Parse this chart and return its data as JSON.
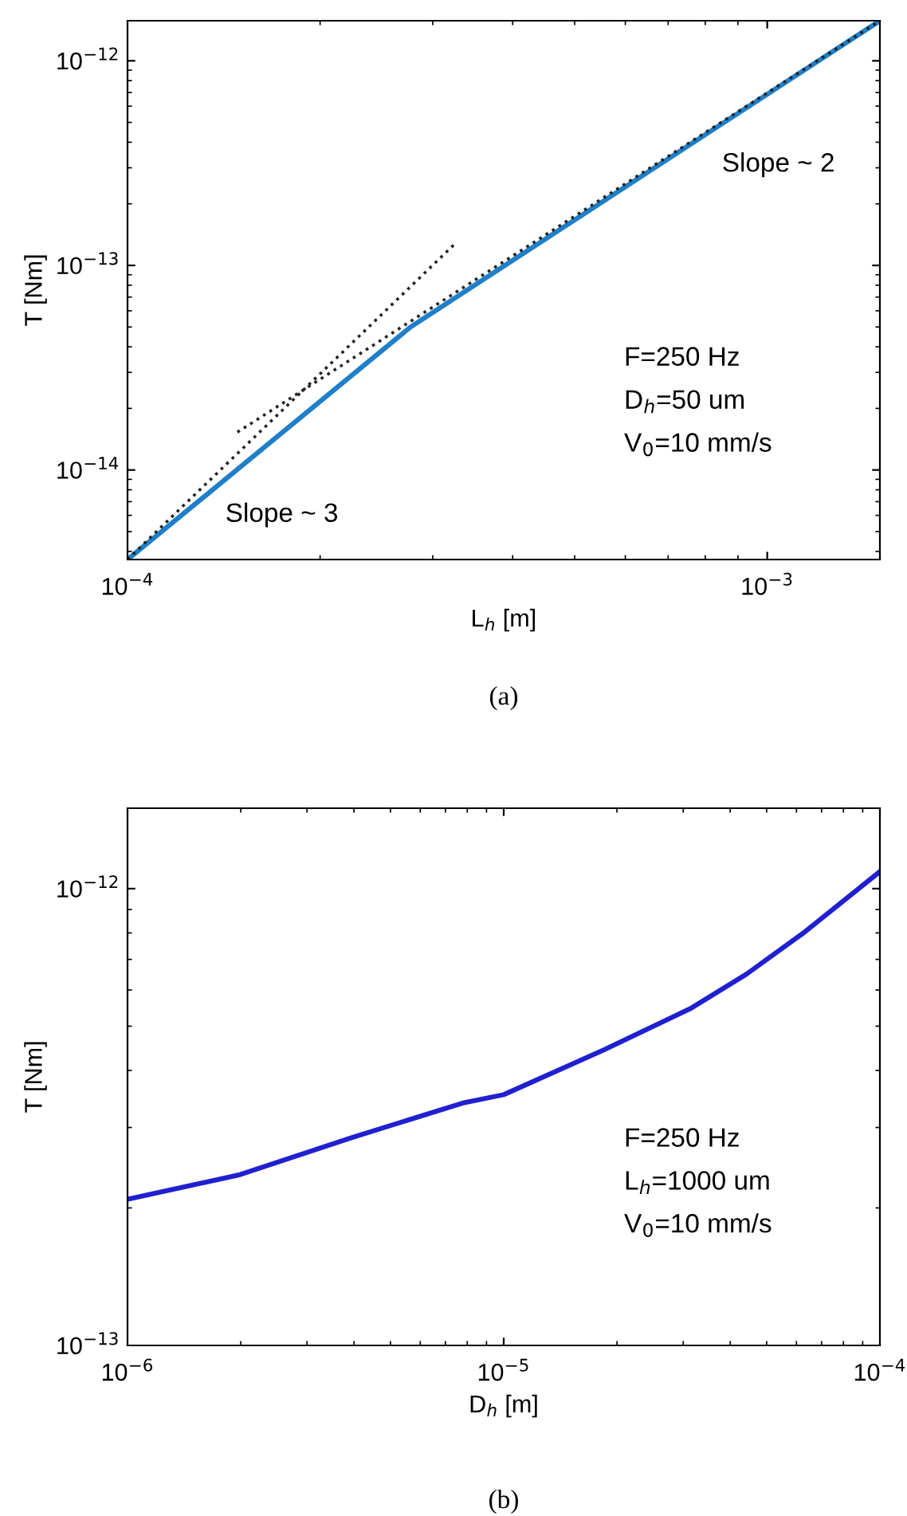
{
  "chart_data": [
    {
      "type": "line",
      "xlabel": "L$_{h}$ [m]",
      "ylabel": "T [Nm]",
      "log": "xy",
      "grid": false,
      "xlim": [
        0.0001,
        0.0015
      ],
      "ylim": [
        3.65e-15,
        1.57e-12
      ],
      "xticks": [
        {
          "value": 0.0001,
          "label": "10$^{−4}$"
        },
        {
          "value": 0.001,
          "label": "10$^{−3}$"
        }
      ],
      "yticks": [
        {
          "value": 1e-14,
          "label": "10$^{−14}$"
        },
        {
          "value": 1e-13,
          "label": "10$^{−13}$"
        },
        {
          "value": 1e-12,
          "label": "10$^{−12}$"
        }
      ],
      "series": [
        {
          "color": "#1f7fc8",
          "line_style": "solid",
          "x": [
            0.0001,
            0.000151,
            0.000277,
            0.0015
          ],
          "values": [
            3.65e-15,
            1.05e-14,
            5e-14,
            1.57e-12
          ]
        },
        {
          "color": "#222222",
          "line_style": "dotted",
          "x": [
            0.0001,
            0.000327
          ],
          "values": [
            3.65e-15,
            1.3e-13
          ]
        },
        {
          "color": "#222222",
          "line_style": "dotted",
          "x": [
            0.0001485,
            0.0015
          ],
          "values": [
            1.53e-14,
            1.57e-12
          ]
        }
      ],
      "annotations": [
        "Slope ~ 2",
        "Slope ~ 3",
        "F=250 Hz",
        "D$_{h}$=50 um",
        "V$_{0}$=10 mm/s",
        "(a)"
      ]
    },
    {
      "type": "line",
      "xlabel": "D$_{h}$ [m]",
      "ylabel": "T [Nm]",
      "log": "xy",
      "grid": false,
      "xlim": [
        1e-06,
        0.0001
      ],
      "ylim": [
        1e-13,
        1.5e-12
      ],
      "xticks": [
        {
          "value": 1e-06,
          "label": "10$^{−6}$"
        },
        {
          "value": 1e-05,
          "label": "10$^{−5}$"
        },
        {
          "value": 0.0001,
          "label": "10$^{−4}$"
        }
      ],
      "yticks": [
        {
          "value": 1e-13,
          "label": "10$^{−13}$"
        },
        {
          "value": 1e-12,
          "label": "10$^{−12}$"
        }
      ],
      "series": [
        {
          "color": "#2020d0",
          "line_style": "solid",
          "x": [
            1e-06,
            1.97e-06,
            3.94e-06,
            7.85e-06,
            1e-05,
            1.86e-05,
            3.13e-05,
            4.42e-05,
            6.24e-05,
            0.0001
          ],
          "values": [
            2.09e-13,
            2.36e-13,
            2.85e-13,
            3.4e-13,
            3.54e-13,
            4.45e-13,
            5.46e-13,
            6.5e-13,
            7.98e-13,
            1.09e-12
          ]
        }
      ],
      "annotations": [
        "F=250 Hz",
        "L$_{h}$=1000 um",
        "V$_{0}$=10 mm/s",
        "(b)"
      ]
    }
  ]
}
